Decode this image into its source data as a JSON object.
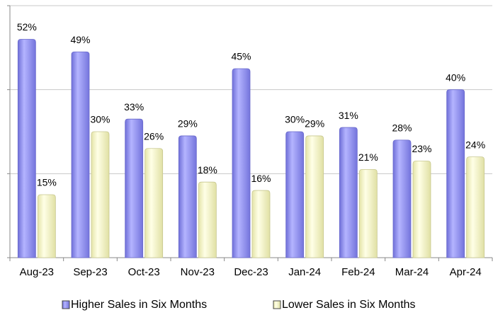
{
  "chart_data": {
    "type": "bar",
    "categories": [
      "Aug-23",
      "Sep-23",
      "Oct-23",
      "Nov-23",
      "Dec-23",
      "Jan-24",
      "Feb-24",
      "Mar-24",
      "Apr-24"
    ],
    "series": [
      {
        "name": "Higher Sales in Six Months",
        "color": "#8f8ff2",
        "values": [
          52,
          49,
          33,
          29,
          45,
          30,
          31,
          28,
          40
        ],
        "value_labels": [
          "52%",
          "49%",
          "33%",
          "29%",
          "45%",
          "30%",
          "31%",
          "28%",
          "40%"
        ]
      },
      {
        "name": "Lower Sales in Six Months",
        "color": "#f6f6c6",
        "values": [
          15,
          30,
          26,
          18,
          16,
          29,
          21,
          23,
          24
        ],
        "value_labels": [
          "15%",
          "30%",
          "26%",
          "18%",
          "16%",
          "29%",
          "21%",
          "23%",
          "24%"
        ]
      }
    ],
    "ylim": [
      0,
      60
    ],
    "yticks": [
      0,
      20,
      40,
      60
    ],
    "grid": true,
    "legend": "bottom"
  }
}
